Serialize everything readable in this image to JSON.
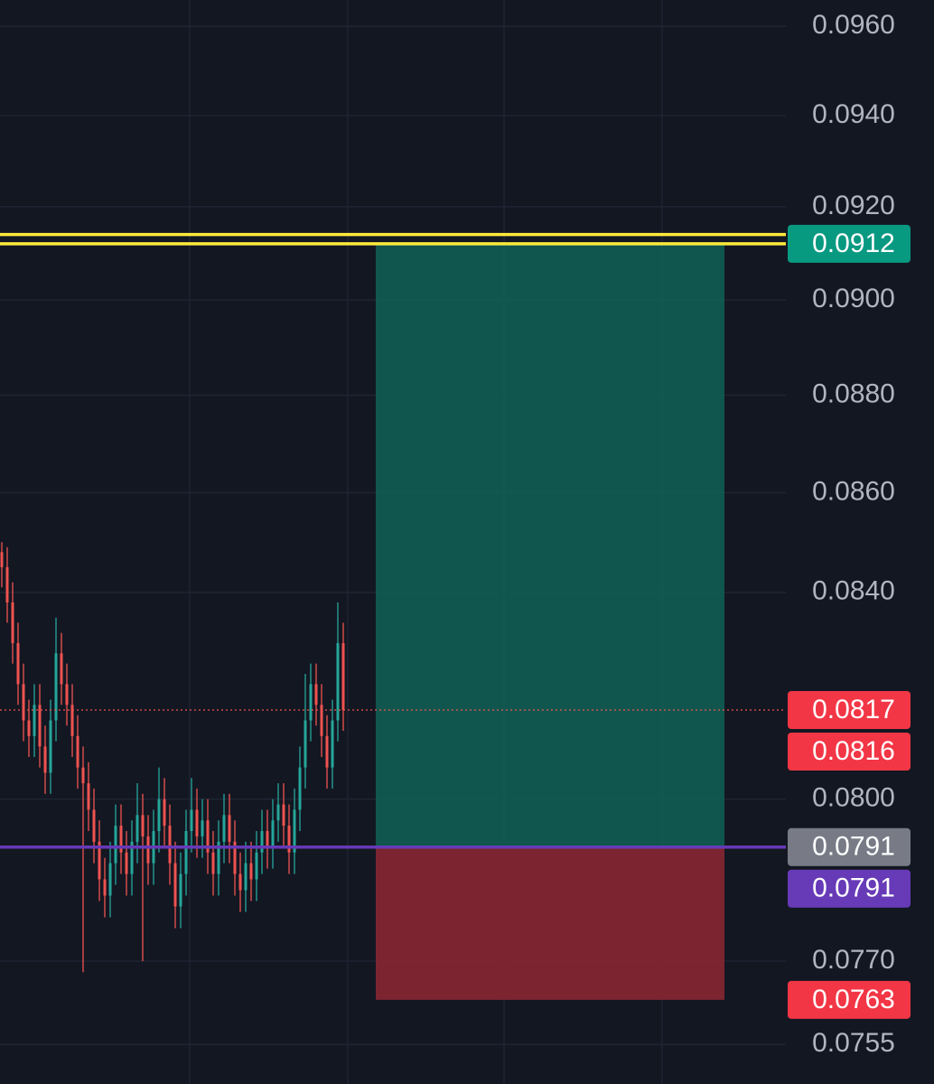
{
  "chart_data": {
    "type": "candlestick",
    "log_scale": true,
    "grid": true,
    "ylim": [
      0.0748,
      0.0966
    ],
    "yticks": [
      {
        "value": 0.096,
        "label": "0.0960"
      },
      {
        "value": 0.094,
        "label": "0.0940"
      },
      {
        "value": 0.092,
        "label": "0.0920"
      },
      {
        "value": 0.09,
        "label": "0.0900"
      },
      {
        "value": 0.088,
        "label": "0.0880"
      },
      {
        "value": 0.086,
        "label": "0.0860"
      },
      {
        "value": 0.084,
        "label": "0.0840"
      },
      {
        "value": 0.08,
        "label": "0.0800"
      },
      {
        "value": 0.077,
        "label": "0.0770"
      },
      {
        "value": 0.0755,
        "label": "0.0755"
      }
    ],
    "up_color": "#26a69a",
    "down_color": "#ef5350",
    "open": [
      0.0848,
      0.0845,
      0.0838,
      0.083,
      0.0822,
      0.0815,
      0.0812,
      0.0818,
      0.081,
      0.0805,
      0.0815,
      0.0828,
      0.0822,
      0.0818,
      0.0812,
      0.0806,
      0.0803,
      0.0798,
      0.0792,
      0.0785,
      0.0782,
      0.0788,
      0.0795,
      0.079,
      0.0786,
      0.0792,
      0.0797,
      0.0793,
      0.0788,
      0.0794,
      0.08,
      0.0795,
      0.0788,
      0.078,
      0.0786,
      0.0794,
      0.0798,
      0.0793,
      0.0796,
      0.079,
      0.0786,
      0.0792,
      0.0797,
      0.0792,
      0.0786,
      0.0783,
      0.0788,
      0.0785,
      0.079,
      0.0794,
      0.0791,
      0.0796,
      0.0799,
      0.0795,
      0.079,
      0.0798,
      0.0806,
      0.0815,
      0.0822,
      0.0818,
      0.0812,
      0.0806,
      0.0815,
      0.083
    ],
    "high": [
      0.085,
      0.0849,
      0.0842,
      0.0834,
      0.0826,
      0.0819,
      0.0822,
      0.0822,
      0.0814,
      0.0819,
      0.0835,
      0.0832,
      0.0826,
      0.0822,
      0.0816,
      0.081,
      0.0807,
      0.0802,
      0.0796,
      0.0789,
      0.0792,
      0.0799,
      0.0799,
      0.0794,
      0.0796,
      0.0803,
      0.0801,
      0.0797,
      0.0798,
      0.0806,
      0.0804,
      0.0799,
      0.0792,
      0.079,
      0.0798,
      0.0804,
      0.0802,
      0.08,
      0.08,
      0.0794,
      0.0796,
      0.0801,
      0.0801,
      0.0796,
      0.079,
      0.0792,
      0.0792,
      0.0794,
      0.0798,
      0.0798,
      0.08,
      0.0803,
      0.0803,
      0.0799,
      0.0802,
      0.081,
      0.0824,
      0.0826,
      0.0826,
      0.0822,
      0.0816,
      0.0819,
      0.0838,
      0.0834
    ],
    "low": [
      0.0841,
      0.0834,
      0.0826,
      0.0818,
      0.0811,
      0.0808,
      0.0808,
      0.0806,
      0.0801,
      0.0801,
      0.0811,
      0.0818,
      0.0814,
      0.0808,
      0.0802,
      0.0768,
      0.0794,
      0.0788,
      0.0781,
      0.0778,
      0.0778,
      0.0784,
      0.0786,
      0.0782,
      0.0782,
      0.0788,
      0.077,
      0.0784,
      0.0784,
      0.079,
      0.0791,
      0.0784,
      0.0776,
      0.0776,
      0.0782,
      0.079,
      0.0789,
      0.0789,
      0.0786,
      0.0782,
      0.0782,
      0.0788,
      0.0788,
      0.0782,
      0.0779,
      0.0779,
      0.0781,
      0.0781,
      0.0786,
      0.0787,
      0.0787,
      0.0792,
      0.0791,
      0.0786,
      0.0786,
      0.0794,
      0.0802,
      0.0811,
      0.0814,
      0.0808,
      0.0802,
      0.0802,
      0.0811,
      0.0813
    ],
    "close": [
      0.0845,
      0.0838,
      0.083,
      0.0822,
      0.0815,
      0.0812,
      0.0818,
      0.081,
      0.0805,
      0.0815,
      0.0828,
      0.0822,
      0.0818,
      0.0812,
      0.0806,
      0.0803,
      0.0798,
      0.0792,
      0.0785,
      0.0782,
      0.0788,
      0.0795,
      0.079,
      0.0786,
      0.0792,
      0.0797,
      0.0793,
      0.0788,
      0.0794,
      0.08,
      0.0795,
      0.0788,
      0.078,
      0.0786,
      0.0794,
      0.0798,
      0.0793,
      0.0796,
      0.079,
      0.0786,
      0.0792,
      0.0797,
      0.0792,
      0.0786,
      0.0783,
      0.0788,
      0.0785,
      0.079,
      0.0794,
      0.0791,
      0.0796,
      0.0799,
      0.0795,
      0.079,
      0.0798,
      0.0806,
      0.0815,
      0.0822,
      0.0818,
      0.0812,
      0.0806,
      0.0815,
      0.083,
      0.0817
    ],
    "lines": [
      {
        "value": 0.0914,
        "color": "#ffeb3b",
        "style": "solid"
      },
      {
        "value": 0.0912,
        "color": "#ffeb3b",
        "style": "solid"
      },
      {
        "value": 0.0791,
        "color": "#673ab7",
        "style": "solid"
      },
      {
        "value": 0.0817,
        "color": "#ef5350",
        "style": "dotted"
      }
    ],
    "price_labels": [
      {
        "value": 0.0912,
        "label": "0.0912",
        "color": "#089981"
      },
      {
        "value": 0.0817,
        "label": "0.0817",
        "color": "#f23645"
      },
      {
        "value": 0.0816,
        "label": "0.0816",
        "color": "#f23645"
      },
      {
        "value": 0.0791,
        "label": "0.0791",
        "color": "#787b86"
      },
      {
        "value": 0.0791,
        "label": "0.0791",
        "color": "#673ab7"
      },
      {
        "value": 0.0763,
        "label": "0.0763",
        "color": "#f23645"
      }
    ],
    "profit_zone_color": "#115c52",
    "loss_zone_color": "#862733"
  }
}
